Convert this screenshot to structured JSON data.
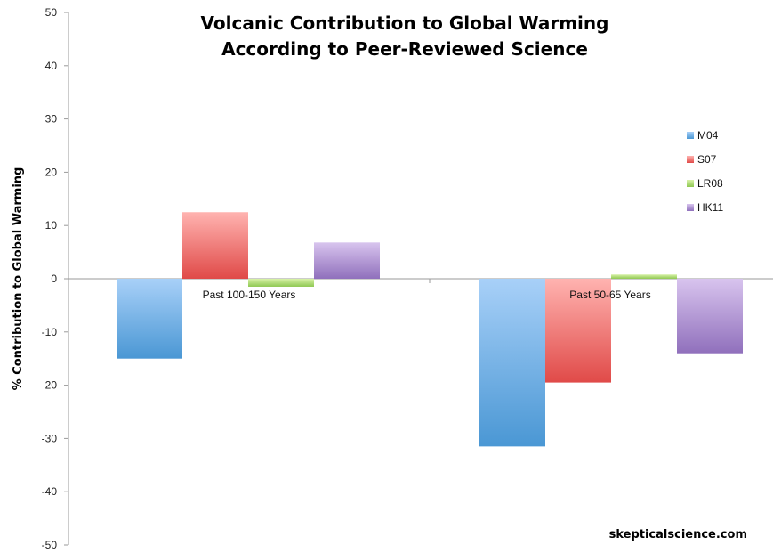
{
  "chart_data": {
    "type": "bar",
    "title": [
      "Volcanic Contribution to Global Warming",
      "According to Peer-Reviewed Science"
    ],
    "ylabel": "% Contribution to Global Warming",
    "xlabel": "",
    "ylim": [
      -50,
      50
    ],
    "yticks": [
      50,
      40,
      30,
      20,
      10,
      0,
      -10,
      -20,
      -30,
      -40,
      -50
    ],
    "categories": [
      "Past 100-150 Years",
      "Past 50-65 Years"
    ],
    "series": [
      {
        "name": "M04",
        "values": [
          -15,
          -31.5
        ],
        "color_top": "#a8d0f8",
        "color_bottom": "#4a97d4"
      },
      {
        "name": "S07",
        "values": [
          12.5,
          -19.5
        ],
        "color_top": "#ffb3b0",
        "color_bottom": "#e04a48"
      },
      {
        "name": "LR08",
        "values": [
          -1.5,
          0.8
        ],
        "color_top": "#d8f2a8",
        "color_bottom": "#8fc852"
      },
      {
        "name": "HK11",
        "values": [
          6.8,
          -14
        ],
        "color_top": "#d8c4ee",
        "color_bottom": "#9070bc"
      }
    ],
    "legend_position": "right",
    "grid": false
  },
  "credit": "skepticalscience.com"
}
